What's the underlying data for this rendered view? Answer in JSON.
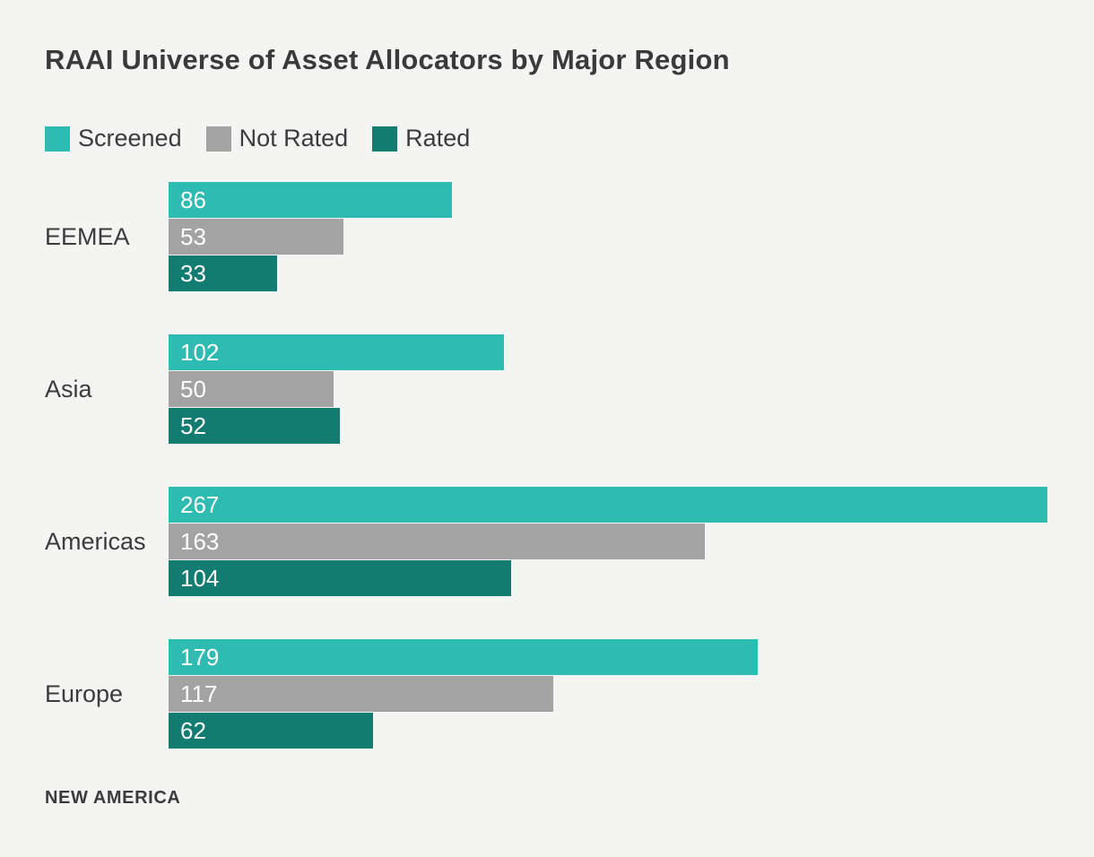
{
  "title": "RAAI Universe of Asset Allocators by Major Region",
  "footer": {
    "brand": "NEW AMERICA"
  },
  "colors": {
    "background": "#f4f4f3",
    "text": "#3b3b3b",
    "value_label": "#ffffff",
    "screened": "#2ebcb2",
    "not_rated": "#a3a3a3",
    "rated": "#137c72"
  },
  "chart_data": {
    "type": "bar",
    "orientation": "horizontal",
    "title": "RAAI Universe of Asset Allocators by Major Region",
    "categories": [
      "EEMEA",
      "Asia",
      "Americas",
      "Europe"
    ],
    "series": [
      {
        "name": "Screened",
        "color_key": "screened",
        "values": [
          86,
          102,
          267,
          179
        ]
      },
      {
        "name": "Not Rated",
        "color_key": "not_rated",
        "values": [
          53,
          50,
          163,
          117
        ]
      },
      {
        "name": "Rated",
        "color_key": "rated",
        "values": [
          33,
          52,
          104,
          62
        ]
      }
    ],
    "xlim": [
      0,
      267
    ],
    "legend_position": "top",
    "value_labels": "inside-start",
    "grid": false,
    "source_label": "NEW AMERICA"
  }
}
